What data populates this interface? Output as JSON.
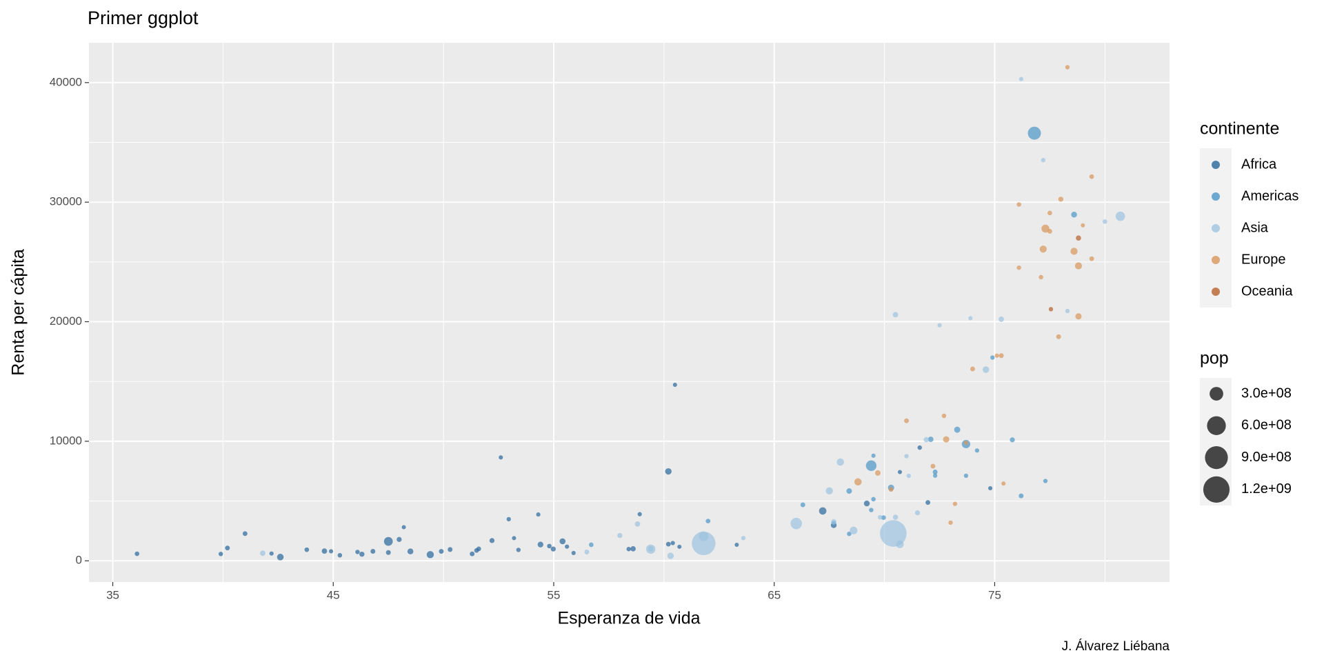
{
  "chart_data": {
    "type": "scatter",
    "title": "Primer ggplot",
    "x_label": "Esperanza de vida",
    "y_label": "Renta per cápita",
    "caption": "J. Álvarez Liébana",
    "legend_title": "continente",
    "size_legend_title": "pop",
    "xlim": [
      33.92,
      82.93
    ],
    "ylim": [
      -1773,
      43333
    ],
    "xticks": [
      35,
      45,
      55,
      65,
      75
    ],
    "xminor": [
      40,
      50,
      60,
      70,
      80
    ],
    "yticks": [
      0,
      10000,
      20000,
      30000,
      40000
    ],
    "yminor": [
      5000,
      15000,
      25000,
      35000
    ],
    "grid": true,
    "legend_position": "right",
    "size_breaks": [
      {
        "value": 300000000,
        "label": "3.0e+08"
      },
      {
        "value": 600000000,
        "label": "6.0e+08"
      },
      {
        "value": 900000000,
        "label": "9.0e+08"
      },
      {
        "value": 1200000000,
        "label": "1.2e+09"
      }
    ],
    "series": [
      {
        "name": "Africa",
        "color": "#26679a",
        "x": [
          69.2,
          41.0,
          54.8,
          52.6,
          50.3,
          45.3,
          52.2,
          46.1,
          51.6,
          60.7,
          42.6,
          52.96,
          47.99,
          53.2,
          67.2,
          48.2,
          53.4,
          49.4,
          60.5,
          55.9,
          58.6,
          51.5,
          44.9,
          54.4,
          55.6,
          42.2,
          71.6,
          54.98,
          47.5,
          49.9,
          60.4,
          70.7,
          67.7,
          46.3,
          58.9,
          51.3,
          47.5,
          74.8,
          36.1,
          63.3,
          60.2,
          39.9,
          43.8,
          60.2,
          55.4,
          54.3,
          48.5,
          58.4,
          71.97,
          44.6,
          40.2,
          46.8
        ],
        "values": [
          4797,
          2277,
          1233,
          8647,
          946,
          463,
          1694,
          741,
          1005,
          1174,
          312,
          3484,
          1786,
          1895,
          4173,
          2814,
          914,
          516,
          14723,
          654,
          1005,
          869,
          797,
          1360,
          1187,
          610,
          9467,
          986,
          692,
          790,
          1484,
          7426,
          2982,
          553,
          3900,
          580,
          1625,
          6072,
          590,
          1339,
          1392,
          575,
          930,
          7479,
          1632,
          3876,
          789,
          982,
          4876,
          817,
          1071,
          792
        ],
        "pop": [
          29100000,
          9900000,
          6100000,
          1500000,
          10400000,
          6100000,
          14200000,
          3700000,
          7600000,
          530000,
          47800000,
          2800000,
          14600000,
          420000,
          66100000,
          440000,
          4100000,
          59900000,
          1100000,
          1200000,
          18400000,
          8000000,
          1200000,
          28300000,
          2000000,
          2200000,
          4800000,
          14200000,
          10400000,
          10000000,
          2400000,
          1150000,
          28500000,
          16600000,
          1770000,
          9700000,
          106000000,
          680000,
          7200000,
          145000,
          9500000,
          4600000,
          6600000,
          42800000,
          32200000,
          1050000,
          30700000,
          4300000,
          9200000,
          21200000,
          9400000,
          11400000
        ]
      },
      {
        "name": "Americas",
        "color": "#4b95c8",
        "x": [
          73.3,
          62.0,
          69.4,
          78.6,
          75.8,
          70.3,
          77.3,
          76.2,
          69.96,
          72.3,
          69.5,
          66.3,
          56.7,
          67.7,
          72.3,
          73.7,
          68.4,
          73.7,
          69.4,
          68.4,
          74.9,
          69.5,
          76.8,
          74.2,
          72.1
        ],
        "values": [
          10967,
          3326,
          7958,
          28955,
          10118,
          6117,
          6677,
          5432,
          3614,
          7429,
          5154,
          4684,
          1342,
          3160,
          7122,
          9767,
          2253,
          7114,
          4247,
          5838,
          16999,
          8793,
          35767,
          9231,
          10165
        ],
        "pop": [
          36200000,
          7700000,
          168500000,
          30300000,
          14600000,
          37700000,
          3500000,
          11000000,
          7990000,
          11900000,
          5800000,
          9800000,
          6800000,
          5900000,
          2500000,
          95900000,
          4600000,
          2700000,
          5200000,
          24700000,
          3760000,
          1100000,
          272900000,
          3300000,
          22400000
        ]
      },
      {
        "name": "Asia",
        "color": "#9dc3df",
        "x": [
          41.8,
          73.9,
          59.4,
          56.5,
          70.4,
          80.0,
          61.8,
          66.0,
          68.0,
          58.8,
          78.3,
          80.7,
          69.8,
          67.7,
          74.6,
          76.2,
          71.0,
          71.9,
          63.6,
          60.3,
          59.4,
          72.5,
          61.8,
          68.6,
          70.5,
          77.2,
          70.5,
          71.5,
          75.3,
          67.5,
          70.7,
          71.1,
          58.0
        ],
        "values": [
          635,
          20292,
          973,
          734,
          2289,
          28378,
          1459,
          3119,
          8264,
          3076,
          20897,
          28817,
          3645,
          3255,
          15994,
          40301,
          8755,
          10132,
          1902,
          415,
          1010,
          19702,
          2049,
          2537,
          20587,
          33519,
          3645,
          4014,
          20207,
          5853,
          1386,
          7111,
          2117
        ],
        "pop": [
          22200000,
          600000,
          123000000,
          11800000,
          1230000000,
          6500000,
          959000000,
          200000000,
          63500000,
          20800000,
          5500000,
          125600000,
          4500000,
          21600000,
          46000000,
          1800000,
          3400000,
          20500000,
          2500000,
          43200000,
          23000000,
          2300000,
          135600000,
          75000000,
          21200000,
          3800000,
          18700000,
          15100000,
          21600000,
          60100000,
          76000000,
          2800000,
          15800000
        ]
      },
      {
        "name": "Europe",
        "color": "#d8955a",
        "x": [
          73.0,
          77.5,
          77.5,
          73.2,
          70.3,
          73.7,
          74.0,
          76.1,
          77.1,
          78.6,
          77.3,
          77.9,
          71.0,
          79.0,
          76.1,
          78.8,
          75.4,
          78.0,
          78.3,
          72.8,
          75.3,
          69.7,
          72.2,
          72.7,
          75.1,
          78.8,
          79.4,
          79.4,
          68.8,
          77.2
        ],
        "values": [
          3193,
          29096,
          27561,
          4766,
          5971,
          9876,
          16049,
          29804,
          23724,
          25890,
          27789,
          18748,
          11712,
          28061,
          24521,
          24675,
          6465,
          30246,
          41283,
          10160,
          17161,
          7347,
          7914,
          12127,
          17161,
          20445,
          25267,
          32135,
          6601,
          26074
        ],
        "pop": [
          3400000,
          8100000,
          10200000,
          3600000,
          8100000,
          4400000,
          10300000,
          5300000,
          5100000,
          58600000,
          82000000,
          10500000,
          10200000,
          270000,
          3700000,
          57500000,
          690000,
          15600000,
          4400000,
          38700000,
          10200000,
          22600000,
          10000000,
          5400000,
          2000000,
          39800000,
          8900000,
          7200000,
          63000000,
          58800000
        ]
      },
      {
        "name": "Oceania",
        "color": "#b6602c",
        "x": [
          78.8,
          77.55
        ],
        "values": [
          26998,
          21050
        ],
        "pop": [
          18600000,
          3700000
        ]
      }
    ]
  }
}
